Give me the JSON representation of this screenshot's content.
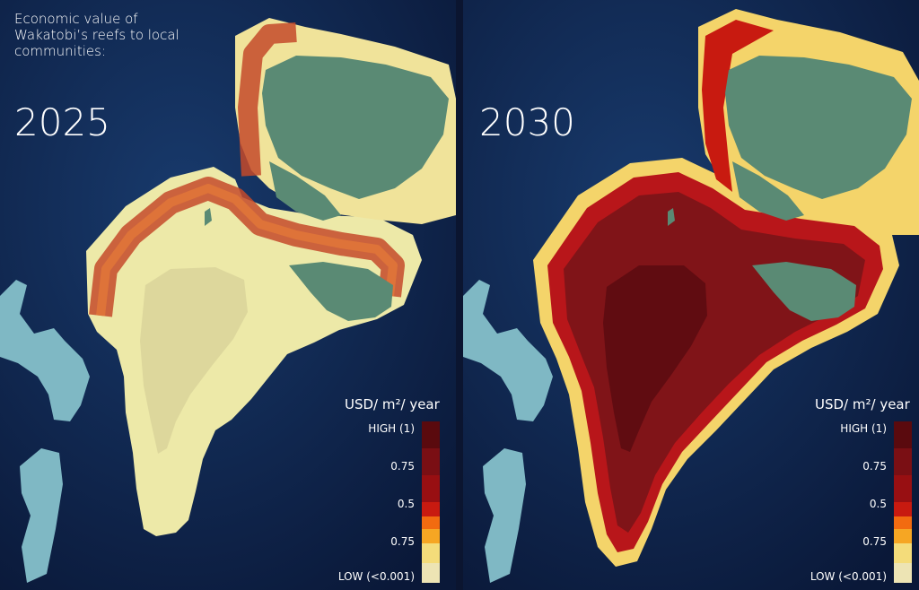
{
  "caption": "Economic value of Wakatobi’s reefs to local communities:",
  "panels": [
    {
      "year": "2025"
    },
    {
      "year": "2030"
    }
  ],
  "legend": {
    "title": "USD/ m²/ year",
    "ticks": [
      "HIGH (1)",
      "0.75",
      "0.5",
      "0.75",
      "LOW (<0.001)"
    ],
    "colors": [
      "#5a0a0e",
      "#7a0f14",
      "#980f12",
      "#c81a10",
      "#f26b10",
      "#f6a623",
      "#f4dc7a",
      "#ede4b4"
    ]
  },
  "colors": {
    "ocean": "#0b1d44",
    "land": "#5a8a74",
    "shallow": "#7fb8c4"
  }
}
